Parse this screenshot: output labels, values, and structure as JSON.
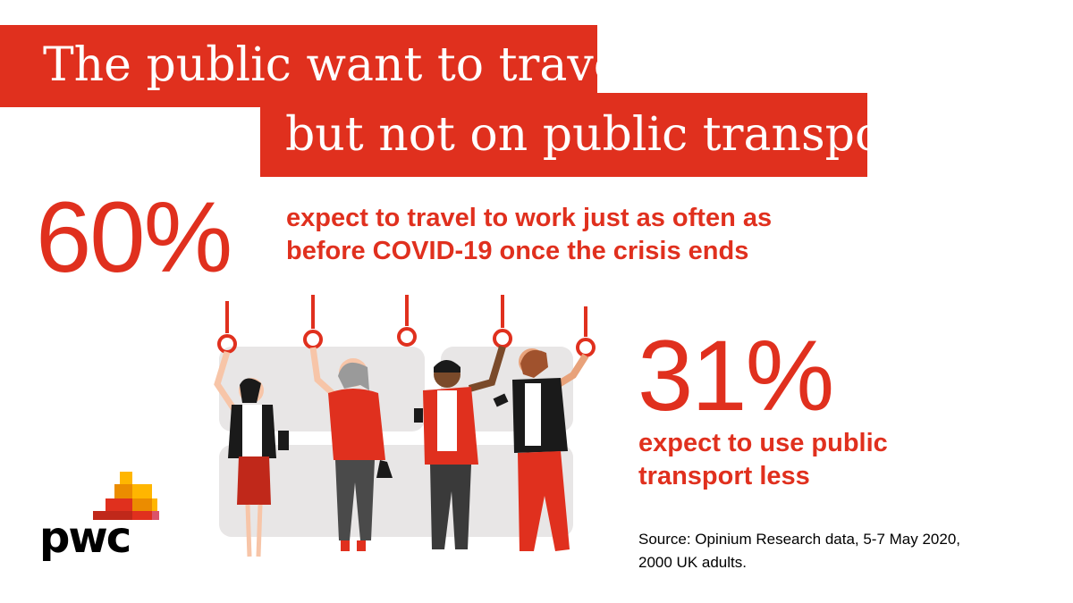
{
  "headline": {
    "line1": "The public want to travel,",
    "line2": "but not on public transport"
  },
  "stat1": {
    "value": "60%",
    "desc_line1": "expect to travel to work just as often as",
    "desc_line2": "before COVID-19 once the crisis ends"
  },
  "stat2": {
    "value": "31%",
    "desc_line1": "expect to use public",
    "desc_line2": "transport less"
  },
  "source": {
    "line1": "Source: Opinium Research data, 5-7 May 2020,",
    "line2": "2000 UK adults."
  },
  "logo": {
    "text": "pwc"
  },
  "colors": {
    "brand_red": "#e0301e",
    "orange": "#eb8c00",
    "yellow": "#ffb600",
    "pink": "#db536a",
    "seat_grey": "#e8e6e6"
  },
  "illustration": {
    "icon": "commuters-standing-holding-straps-illustration"
  }
}
